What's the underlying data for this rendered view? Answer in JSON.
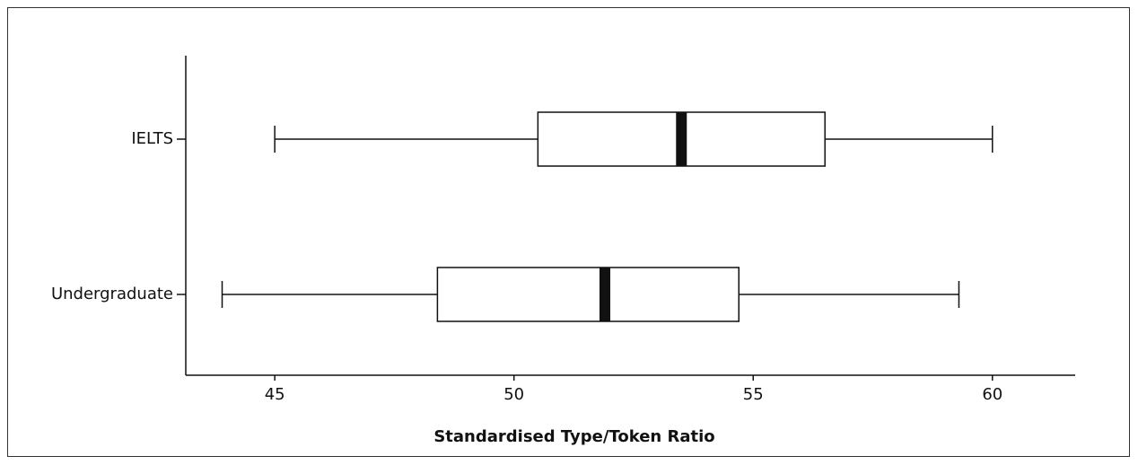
{
  "chart_data": {
    "type": "box",
    "orientation": "horizontal",
    "xlabel": "Standardised Type/Token Ratio",
    "categories": [
      "IELTS",
      "Undergraduate"
    ],
    "boxes": [
      {
        "whislo": 45,
        "q1": 50.5,
        "med": 53.5,
        "q3": 56.5,
        "whishi": 60
      },
      {
        "whislo": 43.9,
        "q1": 48.4,
        "med": 51.9,
        "q3": 54.7,
        "whishi": 59.3
      }
    ],
    "color": "#111111",
    "xlim": [
      43.14,
      61.73
    ],
    "xticks": [
      45,
      50,
      55,
      60
    ]
  }
}
